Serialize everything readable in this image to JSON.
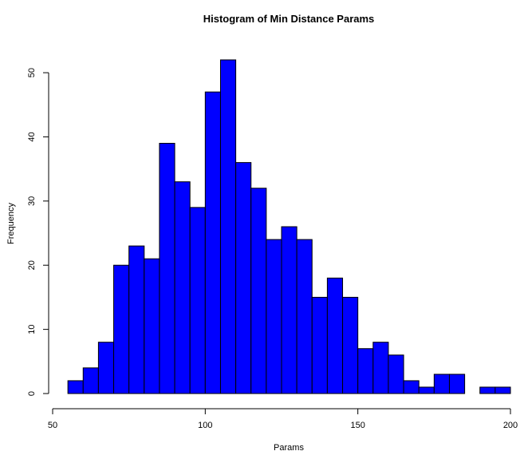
{
  "chart_data": {
    "type": "bar",
    "title": "Histogram of Min Distance Params",
    "xlabel": "Params",
    "ylabel": "Frequency",
    "bin_width": 5,
    "bins": [
      {
        "start": 55,
        "end": 60,
        "count": 2
      },
      {
        "start": 60,
        "end": 65,
        "count": 4
      },
      {
        "start": 65,
        "end": 70,
        "count": 8
      },
      {
        "start": 70,
        "end": 75,
        "count": 20
      },
      {
        "start": 75,
        "end": 80,
        "count": 23
      },
      {
        "start": 80,
        "end": 85,
        "count": 21
      },
      {
        "start": 85,
        "end": 90,
        "count": 39
      },
      {
        "start": 90,
        "end": 95,
        "count": 33
      },
      {
        "start": 95,
        "end": 100,
        "count": 29
      },
      {
        "start": 100,
        "end": 105,
        "count": 47
      },
      {
        "start": 105,
        "end": 110,
        "count": 52
      },
      {
        "start": 110,
        "end": 115,
        "count": 36
      },
      {
        "start": 115,
        "end": 120,
        "count": 32
      },
      {
        "start": 120,
        "end": 125,
        "count": 24
      },
      {
        "start": 125,
        "end": 130,
        "count": 26
      },
      {
        "start": 130,
        "end": 135,
        "count": 24
      },
      {
        "start": 135,
        "end": 140,
        "count": 15
      },
      {
        "start": 140,
        "end": 145,
        "count": 18
      },
      {
        "start": 145,
        "end": 150,
        "count": 15
      },
      {
        "start": 150,
        "end": 155,
        "count": 7
      },
      {
        "start": 155,
        "end": 160,
        "count": 8
      },
      {
        "start": 160,
        "end": 165,
        "count": 6
      },
      {
        "start": 165,
        "end": 170,
        "count": 2
      },
      {
        "start": 170,
        "end": 175,
        "count": 1
      },
      {
        "start": 175,
        "end": 180,
        "count": 3
      },
      {
        "start": 180,
        "end": 185,
        "count": 3
      },
      {
        "start": 185,
        "end": 190,
        "count": 0
      },
      {
        "start": 190,
        "end": 195,
        "count": 1
      },
      {
        "start": 195,
        "end": 200,
        "count": 1
      }
    ],
    "xlim": [
      50,
      200
    ],
    "ylim": [
      0,
      52
    ],
    "x_ticks": [
      50,
      100,
      150,
      200
    ],
    "y_ticks": [
      0,
      10,
      20,
      30,
      40,
      50
    ],
    "bar_color": "#0000ff",
    "bar_border_color": "#000000",
    "grid": false,
    "legend": "none"
  }
}
